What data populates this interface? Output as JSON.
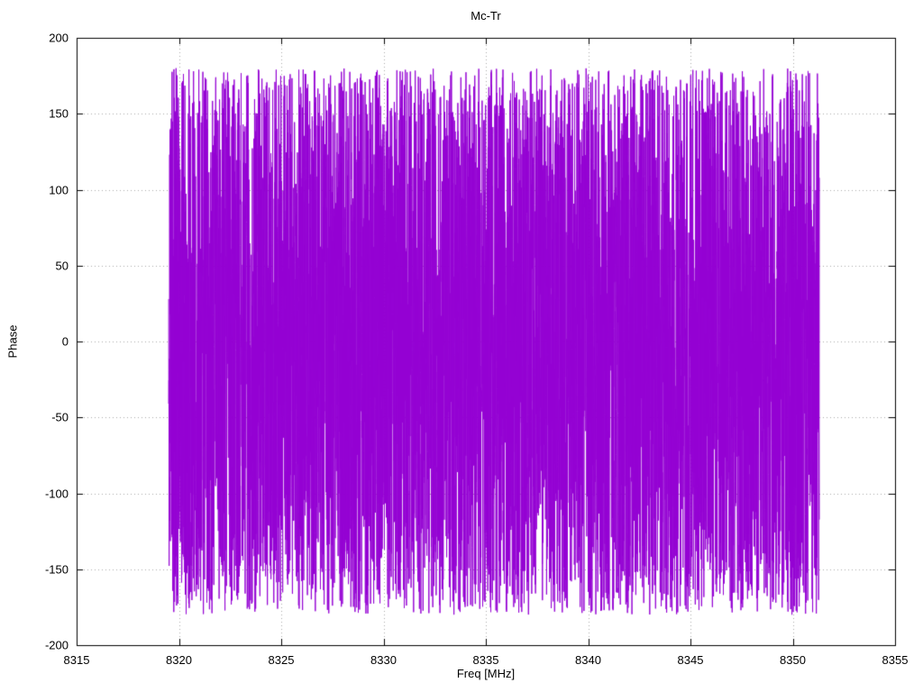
{
  "chart_data": {
    "type": "line",
    "title": "Mc-Tr",
    "xlabel": "Freq [MHz]",
    "ylabel": "Phase",
    "xlim": [
      8315,
      8355
    ],
    "ylim": [
      -200,
      200
    ],
    "xticks": [
      8315,
      8320,
      8325,
      8330,
      8335,
      8340,
      8345,
      8350,
      8355
    ],
    "yticks": [
      -200,
      -150,
      -100,
      -50,
      0,
      50,
      100,
      150,
      200
    ],
    "grid": true,
    "grid_style": "dotted-gray",
    "legend": false,
    "background": "#ffffff",
    "axis_color": "#000000",
    "series": [
      {
        "name": "Mc-Tr phase",
        "color": "#9400d3",
        "style": "connected line, 1px",
        "x_start": 8319.5,
        "x_end": 8351.3,
        "y_min": -180,
        "y_max": 180,
        "n_points": 6000,
        "description": "Dense wrapped interferometric phase noise: values scattered across -180 to +180 degrees, densest near 0, occasional spikes reaching the +/-180 limits, forming a nearly solid band between 8319.5 and 8351.3 MHz"
      }
    ]
  }
}
